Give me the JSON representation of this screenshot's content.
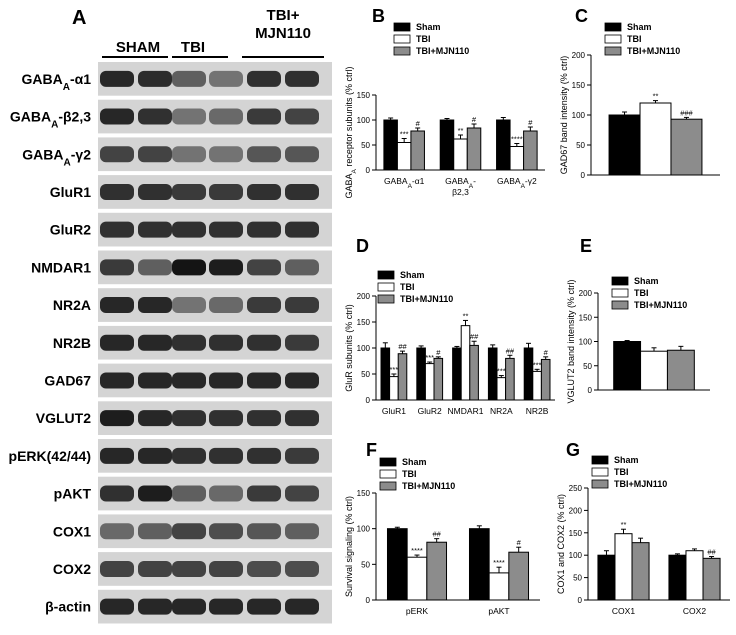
{
  "figure": {
    "blot": {
      "letter": "A",
      "groups": [
        "SHAM",
        "TBI",
        "TBI+\nMJN110"
      ],
      "rows": [
        {
          "label": "GABA",
          "sub": "A",
          "suffix": "-α1"
        },
        {
          "label": "GABA",
          "sub": "A",
          "suffix": "-β2,3"
        },
        {
          "label": "GABA",
          "sub": "A",
          "suffix": "-γ2"
        },
        {
          "label": "GluR1",
          "sub": "",
          "suffix": ""
        },
        {
          "label": "GluR2",
          "sub": "",
          "suffix": ""
        },
        {
          "label": "NMDAR1",
          "sub": "",
          "suffix": ""
        },
        {
          "label": "NR2A",
          "sub": "",
          "suffix": ""
        },
        {
          "label": "NR2B",
          "sub": "",
          "suffix": ""
        },
        {
          "label": "GAD67",
          "sub": "",
          "suffix": ""
        },
        {
          "label": "VGLUT2",
          "sub": "",
          "suffix": ""
        },
        {
          "label": "pERK(42/44)",
          "sub": "",
          "suffix": ""
        },
        {
          "label": "pAKT",
          "sub": "",
          "suffix": ""
        },
        {
          "label": "COX1",
          "sub": "",
          "suffix": ""
        },
        {
          "label": "COX2",
          "sub": "",
          "suffix": ""
        },
        {
          "label": "β-actin",
          "sub": "",
          "suffix": ""
        }
      ],
      "band_intensity": [
        [
          0.85,
          0.82,
          0.55,
          0.45,
          0.8,
          0.8
        ],
        [
          0.85,
          0.8,
          0.45,
          0.5,
          0.75,
          0.7
        ],
        [
          0.7,
          0.7,
          0.45,
          0.45,
          0.6,
          0.6
        ],
        [
          0.8,
          0.8,
          0.75,
          0.75,
          0.8,
          0.8
        ],
        [
          0.8,
          0.8,
          0.8,
          0.8,
          0.8,
          0.8
        ],
        [
          0.75,
          0.55,
          0.95,
          0.9,
          0.7,
          0.55
        ],
        [
          0.85,
          0.85,
          0.45,
          0.5,
          0.75,
          0.75
        ],
        [
          0.85,
          0.85,
          0.8,
          0.8,
          0.8,
          0.75
        ],
        [
          0.85,
          0.85,
          0.85,
          0.85,
          0.85,
          0.85
        ],
        [
          0.9,
          0.85,
          0.8,
          0.8,
          0.8,
          0.8
        ],
        [
          0.85,
          0.85,
          0.8,
          0.8,
          0.8,
          0.75
        ],
        [
          0.8,
          0.9,
          0.55,
          0.5,
          0.75,
          0.7
        ],
        [
          0.5,
          0.55,
          0.7,
          0.65,
          0.6,
          0.55
        ],
        [
          0.7,
          0.7,
          0.7,
          0.7,
          0.65,
          0.65
        ],
        [
          0.85,
          0.85,
          0.85,
          0.85,
          0.85,
          0.85
        ]
      ]
    },
    "legend_colors": {
      "Sham": "#000000",
      "TBI": "#ffffff",
      "TBI+MJN110": "#8c8c8c"
    },
    "star": "*"
  },
  "chart_data": [
    {
      "panel": "B",
      "type": "bar",
      "ylabel_parts": [
        "GABA",
        "A",
        " receptor subunits (% ctrl)"
      ],
      "ylim": [
        0,
        150
      ],
      "yticks": [
        0,
        50,
        100,
        150
      ],
      "legend": [
        "Sham",
        "TBI",
        "TBI+MJN110"
      ],
      "legend_placement": "top",
      "categories": [
        {
          "label": "GABA",
          "sub": "A",
          "suffix": "-α1",
          "line2": ""
        },
        {
          "label": "GABA",
          "sub": "A",
          "suffix": "-",
          "line2": "β2,3"
        },
        {
          "label": "GABA",
          "sub": "A",
          "suffix": "-γ2",
          "line2": ""
        }
      ],
      "series": [
        {
          "name": "Sham",
          "values": [
            100,
            100,
            100
          ],
          "err": [
            4,
            3,
            5
          ],
          "marks": [
            "",
            "",
            ""
          ]
        },
        {
          "name": "TBI",
          "values": [
            55,
            62,
            47
          ],
          "err": [
            8,
            8,
            6
          ],
          "marks": [
            "***",
            "**",
            "****"
          ]
        },
        {
          "name": "TBI+MJN110",
          "values": [
            78,
            84,
            78
          ],
          "err": [
            6,
            8,
            8
          ],
          "marks": [
            "#",
            "#",
            "#"
          ]
        }
      ]
    },
    {
      "panel": "C",
      "type": "bar",
      "ylabel_parts": [
        "GAD67 band intensity (% ctrl)"
      ],
      "ylim": [
        0,
        200
      ],
      "yticks": [
        0,
        50,
        100,
        150,
        200
      ],
      "legend": [
        "Sham",
        "TBI",
        "TBI+MJN110"
      ],
      "legend_placement": "top",
      "categories": [
        {
          "label": "",
          "sub": "",
          "suffix": "",
          "line2": ""
        }
      ],
      "series": [
        {
          "name": "Sham",
          "values": [
            100
          ],
          "err": [
            5
          ],
          "marks": [
            ""
          ]
        },
        {
          "name": "TBI",
          "values": [
            120
          ],
          "err": [
            4
          ],
          "marks": [
            "**"
          ]
        },
        {
          "name": "TBI+MJN110",
          "values": [
            93
          ],
          "err": [
            3
          ],
          "marks": [
            "###"
          ]
        }
      ]
    },
    {
      "panel": "D",
      "type": "bar",
      "ylabel_parts": [
        "GluR subunits (% ctrl)"
      ],
      "ylim": [
        0,
        200
      ],
      "yticks": [
        0,
        50,
        100,
        150,
        200
      ],
      "legend": [
        "Sham",
        "TBI",
        "TBI+MJN110"
      ],
      "legend_placement": "top-left",
      "categories": [
        {
          "label": "GluR1",
          "sub": "",
          "suffix": "",
          "line2": ""
        },
        {
          "label": "GluR2",
          "sub": "",
          "suffix": "",
          "line2": ""
        },
        {
          "label": "NMDAR1",
          "sub": "",
          "suffix": "",
          "line2": ""
        },
        {
          "label": "NR2A",
          "sub": "",
          "suffix": "",
          "line2": ""
        },
        {
          "label": "NR2B",
          "sub": "",
          "suffix": "",
          "line2": ""
        }
      ],
      "series": [
        {
          "name": "Sham",
          "values": [
            100,
            100,
            100,
            100,
            100
          ],
          "err": [
            10,
            4,
            3,
            6,
            9
          ],
          "marks": [
            "",
            "",
            "",
            "",
            ""
          ]
        },
        {
          "name": "TBI",
          "values": [
            45,
            70,
            143,
            43,
            55
          ],
          "err": [
            5,
            3,
            10,
            4,
            4
          ],
          "marks": [
            "***",
            "***",
            "**",
            "***",
            "***"
          ]
        },
        {
          "name": "TBI+MJN110",
          "values": [
            89,
            80,
            105,
            80,
            78
          ],
          "err": [
            5,
            3,
            8,
            6,
            5
          ],
          "marks": [
            "##",
            "#",
            "##",
            "##",
            "#"
          ]
        }
      ]
    },
    {
      "panel": "E",
      "type": "bar",
      "ylabel_parts": [
        "VGLUT2 band intensity (% ctrl)"
      ],
      "ylim": [
        0,
        200
      ],
      "yticks": [
        0,
        50,
        100,
        150,
        200
      ],
      "legend": [
        "Sham",
        "TBI",
        "TBI+MJN110"
      ],
      "legend_placement": "top",
      "categories": [
        {
          "label": "",
          "sub": "",
          "suffix": "",
          "line2": ""
        }
      ],
      "series": [
        {
          "name": "Sham",
          "values": [
            100
          ],
          "err": [
            2
          ],
          "marks": [
            ""
          ]
        },
        {
          "name": "TBI",
          "values": [
            80
          ],
          "err": [
            7
          ],
          "marks": [
            ""
          ]
        },
        {
          "name": "TBI+MJN110",
          "values": [
            82
          ],
          "err": [
            8
          ],
          "marks": [
            ""
          ]
        }
      ]
    },
    {
      "panel": "F",
      "type": "bar",
      "ylabel_parts": [
        "Survival signaling (% ctrl)"
      ],
      "ylim": [
        0,
        150
      ],
      "yticks": [
        0,
        50,
        100,
        150
      ],
      "legend": [
        "Sham",
        "TBI",
        "TBI+MJN110"
      ],
      "legend_placement": "top",
      "categories": [
        {
          "label": "pERK",
          "sub": "",
          "suffix": "",
          "line2": ""
        },
        {
          "label": "pAKT",
          "sub": "",
          "suffix": "",
          "line2": ""
        }
      ],
      "series": [
        {
          "name": "Sham",
          "values": [
            100,
            100
          ],
          "err": [
            2,
            4
          ],
          "marks": [
            "",
            ""
          ]
        },
        {
          "name": "TBI",
          "values": [
            60,
            38
          ],
          "err": [
            3,
            8
          ],
          "marks": [
            "****",
            "****"
          ]
        },
        {
          "name": "TBI+MJN110",
          "values": [
            81,
            67
          ],
          "err": [
            5,
            7
          ],
          "marks": [
            "##",
            "#"
          ]
        }
      ]
    },
    {
      "panel": "G",
      "type": "bar",
      "ylabel_parts": [
        "COX1 and COX2 (% ctrl)"
      ],
      "ylim": [
        0,
        250
      ],
      "yticks": [
        0,
        50,
        100,
        150,
        200,
        250
      ],
      "legend": [
        "Sham",
        "TBI",
        "TBI+MJN110"
      ],
      "legend_placement": "top-left",
      "categories": [
        {
          "label": "COX1",
          "sub": "",
          "suffix": "",
          "line2": ""
        },
        {
          "label": "COX2",
          "sub": "",
          "suffix": "",
          "line2": ""
        }
      ],
      "series": [
        {
          "name": "Sham",
          "values": [
            100,
            100
          ],
          "err": [
            10,
            3
          ],
          "marks": [
            "",
            ""
          ]
        },
        {
          "name": "TBI",
          "values": [
            148,
            110
          ],
          "err": [
            10,
            4
          ],
          "marks": [
            "**",
            ""
          ]
        },
        {
          "name": "TBI+MJN110",
          "values": [
            128,
            93
          ],
          "err": [
            10,
            4
          ],
          "marks": [
            "",
            "##"
          ]
        }
      ]
    }
  ]
}
